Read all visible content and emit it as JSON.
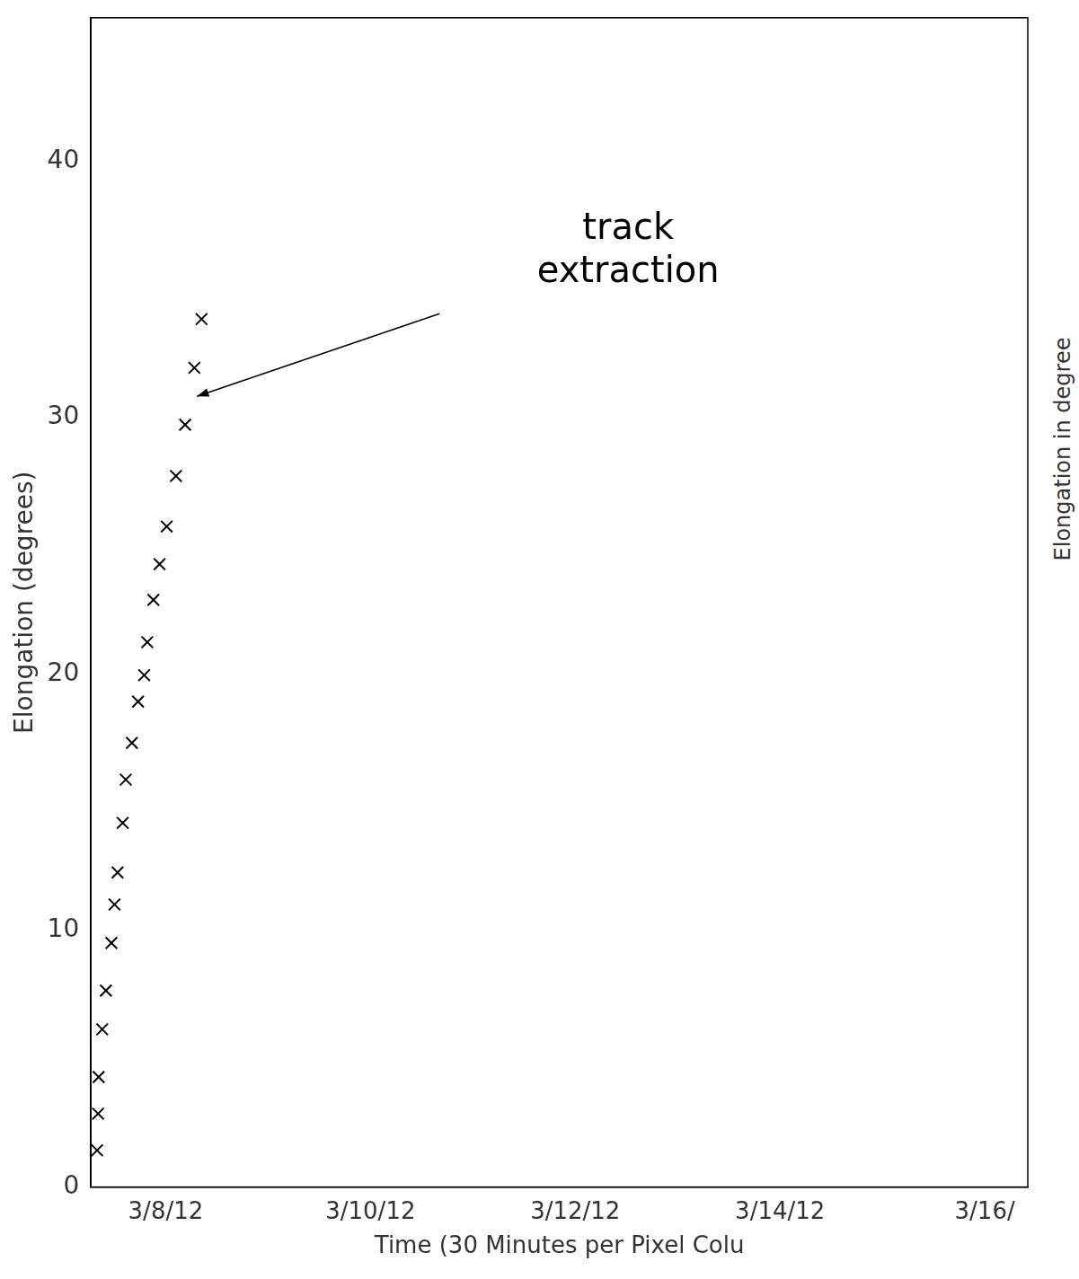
{
  "chart_data": {
    "type": "scatter",
    "x_label": "Time (30 Minutes per Pixel Colu",
    "y_label": "Elongation (degrees)",
    "side_label": "Elongation in degree",
    "annotation": "track extraction",
    "x": [
      7.33,
      7.34,
      7.345,
      7.38,
      7.416,
      7.47,
      7.5,
      7.53,
      7.58,
      7.61,
      7.67,
      7.73,
      7.79,
      7.82,
      7.88,
      7.94,
      8.01,
      8.1,
      8.19,
      8.28,
      8.35
    ],
    "values": [
      1.43,
      2.86,
      4.29,
      6.15,
      7.66,
      9.52,
      11.02,
      12.27,
      14.2,
      15.89,
      17.32,
      18.93,
      19.96,
      21.25,
      22.9,
      24.29,
      25.76,
      27.73,
      29.73,
      31.95,
      33.85
    ],
    "color": "#000000",
    "marker": "cross",
    "xlim": [
      7.27,
      16.42
    ],
    "ylim": [
      0,
      45.6
    ],
    "xticks": [
      {
        "value": 8,
        "label": "3/8/12"
      },
      {
        "value": 10,
        "label": "3/10/12"
      },
      {
        "value": 12,
        "label": "3/12/12"
      },
      {
        "value": 14,
        "label": "3/14/12"
      },
      {
        "value": 16,
        "label": "3/16/"
      }
    ],
    "yticks": [
      0,
      10,
      20,
      30,
      40
    ],
    "grid": false
  }
}
